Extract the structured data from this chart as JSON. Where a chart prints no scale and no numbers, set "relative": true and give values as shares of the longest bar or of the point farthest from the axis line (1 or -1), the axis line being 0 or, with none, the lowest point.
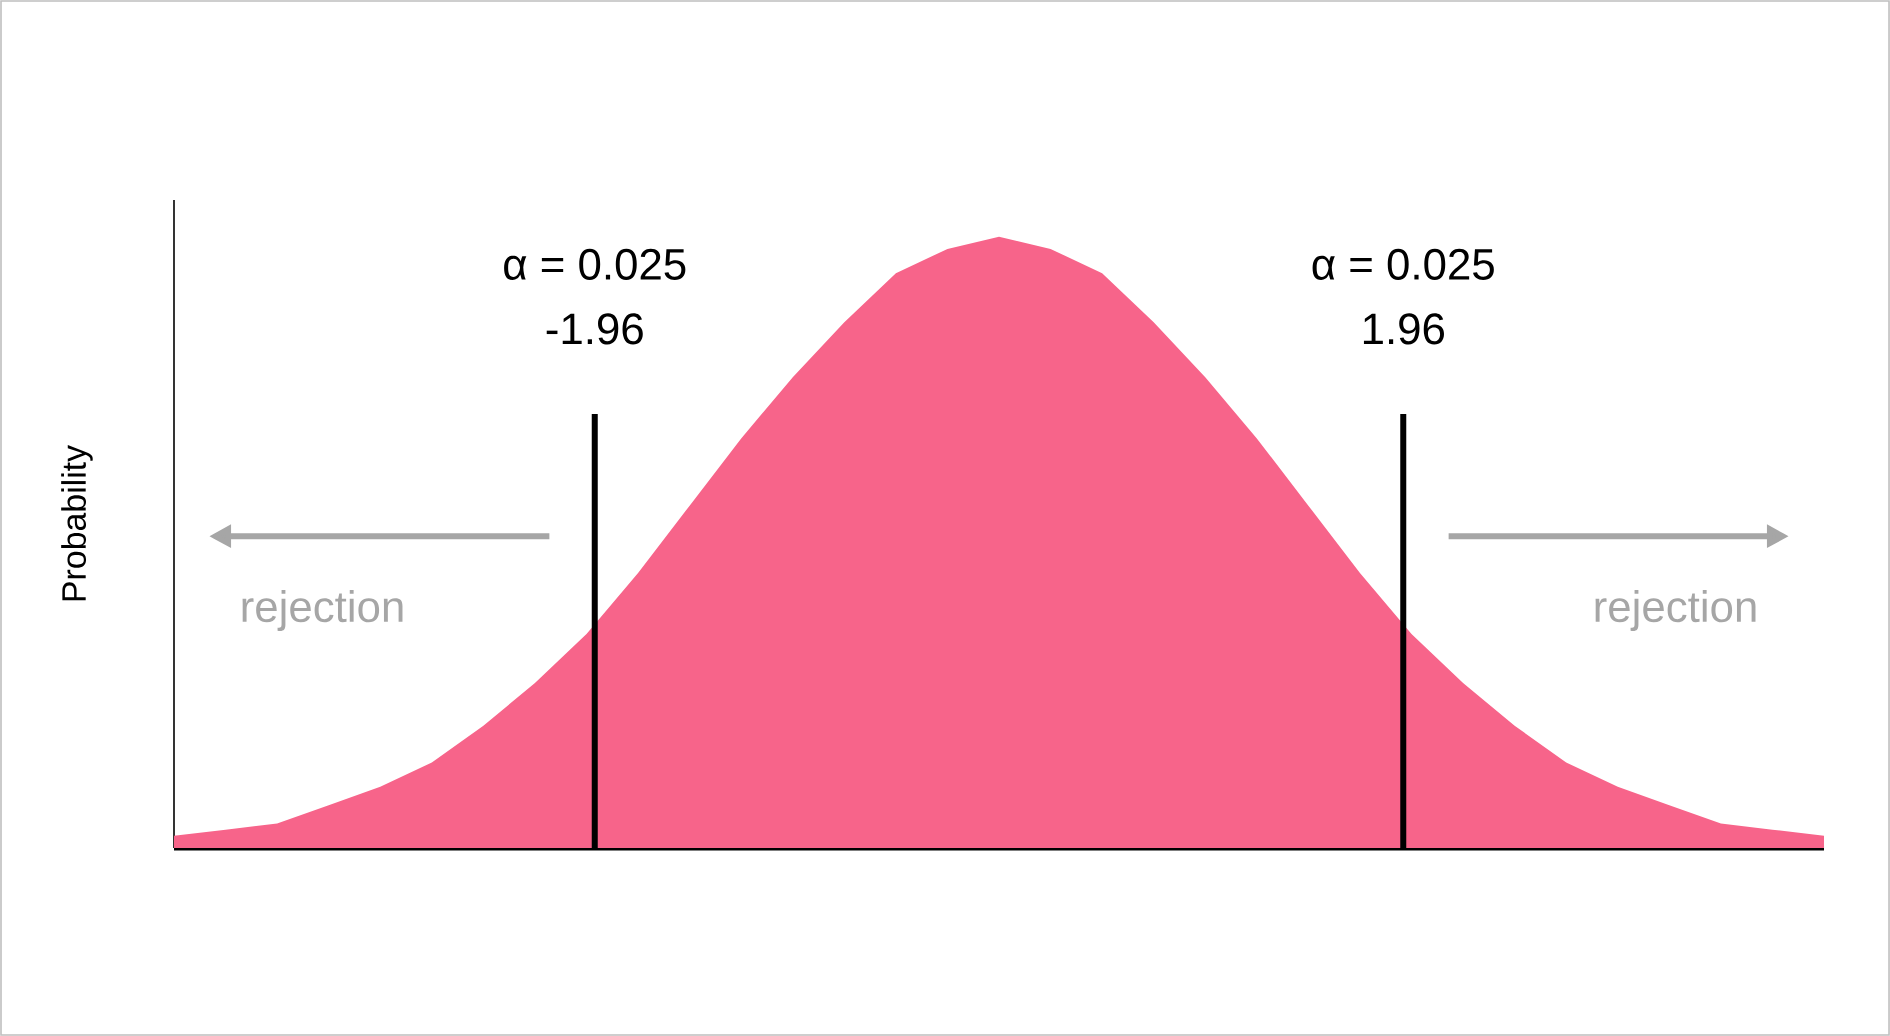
{
  "chart_data": {
    "type": "area",
    "ylabel": "Probability",
    "relative": true,
    "color": "#f7648a",
    "xlim": [
      -4,
      4
    ],
    "x": [
      -4,
      -3.75,
      -3.5,
      -3.25,
      -3,
      -2.75,
      -2.5,
      -2.25,
      -2,
      -1.75,
      -1.5,
      -1.25,
      -1,
      -0.75,
      -0.5,
      -0.25,
      0,
      0.25,
      0.5,
      0.75,
      1,
      1.25,
      1.5,
      1.75,
      2,
      2.25,
      2.5,
      2.75,
      3,
      3.25,
      3.5,
      3.75,
      4
    ],
    "values": [
      0.02,
      0.03,
      0.04,
      0.07,
      0.1,
      0.14,
      0.2,
      0.27,
      0.35,
      0.45,
      0.56,
      0.67,
      0.77,
      0.86,
      0.94,
      0.98,
      1,
      0.98,
      0.94,
      0.86,
      0.77,
      0.67,
      0.56,
      0.45,
      0.35,
      0.27,
      0.2,
      0.14,
      0.1,
      0.07,
      0.04,
      0.03,
      0.02
    ],
    "xticks": [
      {
        "value": -1.96,
        "label": "-1.96"
      },
      {
        "value": 1.96,
        "label": "1.96"
      }
    ],
    "ref_lines": [
      {
        "axis": "x",
        "value": -1.96,
        "color": "#000000"
      },
      {
        "axis": "x",
        "value": 1.96,
        "color": "#000000"
      }
    ],
    "annotations": [
      "α = 0.025",
      "α = 0.025",
      "rejection",
      "rejection"
    ]
  }
}
